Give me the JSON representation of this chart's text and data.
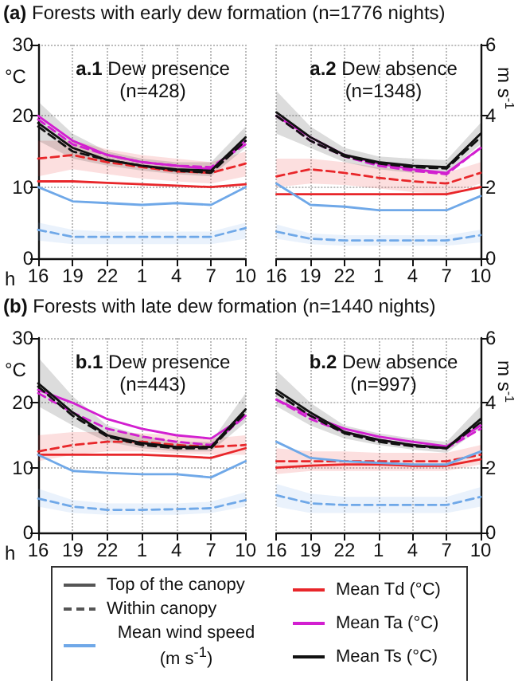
{
  "chart_data": [
    {
      "type": "line",
      "title": "a.1 Dew presence",
      "subtitle": "(n=428)",
      "annotations": [
        "(a) Forests with early dew formation (n=1776 nights)"
      ],
      "xlabel": "h",
      "ylabel": "°C",
      "categories": [
        "16",
        "19",
        "22",
        "1",
        "4",
        "7",
        "10"
      ],
      "ylim": [
        0,
        30
      ],
      "yticks": [
        0,
        10,
        20,
        30
      ],
      "y2lim": [
        0,
        6
      ],
      "grid": true,
      "tick_labels": "xy",
      "series": [
        {
          "color": "#e8262a",
          "line_style": "solid",
          "values": [
            10.8,
            10.8,
            10.6,
            10.4,
            10.2,
            10,
            10.4
          ]
        },
        {
          "color": "#e8262a",
          "line_style": "dashed",
          "values": [
            14,
            14.5,
            13.5,
            12.8,
            12.2,
            12,
            13.3
          ],
          "lower": [
            11.5,
            12.5,
            11.8,
            11.2,
            10.8,
            10.5,
            11.5
          ],
          "upper": [
            16.5,
            16.5,
            15.3,
            14.5,
            14,
            13.5,
            15
          ]
        },
        {
          "color": "#d21fd0",
          "line_style": "solid",
          "values": [
            20,
            16.5,
            14.5,
            13.5,
            13,
            12.5,
            16.5
          ]
        },
        {
          "color": "#d21fd0",
          "line_style": "dashed",
          "values": [
            19.5,
            16,
            14.5,
            13.5,
            13,
            12.8,
            16
          ]
        },
        {
          "color": "#111111",
          "line_style": "solid",
          "values": [
            19,
            15.5,
            13.8,
            13,
            12.5,
            12.3,
            17
          ],
          "lower": [
            16.5,
            14,
            13,
            12.3,
            11.8,
            11.5,
            15.5
          ],
          "upper": [
            22,
            17.5,
            15,
            14,
            13.5,
            13.5,
            18.5
          ]
        },
        {
          "color": "#111111",
          "line_style": "dashed",
          "values": [
            18.5,
            15,
            13.8,
            13,
            12.3,
            12,
            16.5
          ]
        },
        {
          "color": "#6fa8e8",
          "line_style": "solid",
          "axis": "y2",
          "values": [
            2,
            1.6,
            1.55,
            1.5,
            1.55,
            1.5,
            2
          ]
        },
        {
          "color": "#6fa8e8",
          "line_style": "dashed",
          "axis": "y2",
          "values": [
            0.8,
            0.6,
            0.6,
            0.6,
            0.6,
            0.6,
            0.85
          ],
          "lower": [
            0.5,
            0.4,
            0.4,
            0.4,
            0.4,
            0.4,
            0.55
          ],
          "upper": [
            1,
            0.8,
            0.75,
            0.75,
            0.75,
            0.75,
            1
          ]
        }
      ]
    },
    {
      "type": "line",
      "title": "a.2 Dew absence",
      "subtitle": "(n=1348)",
      "y2label": "m s$^{-1}$",
      "categories": [
        "16",
        "19",
        "22",
        "1",
        "4",
        "7",
        "10"
      ],
      "ylim": [
        0,
        30
      ],
      "y2lim": [
        0,
        6
      ],
      "y2ticks": [
        0,
        2,
        4,
        6
      ],
      "grid": true,
      "tick_labels": "xy2",
      "series": [
        {
          "color": "#e8262a",
          "line_style": "solid",
          "values": [
            9,
            9,
            9,
            9,
            9,
            9,
            10
          ]
        },
        {
          "color": "#e8262a",
          "line_style": "dashed",
          "values": [
            11.5,
            12.5,
            12,
            11.3,
            10.8,
            10.5,
            12
          ],
          "lower": [
            10,
            10.5,
            10.3,
            9.8,
            9.3,
            9,
            10.5
          ],
          "upper": [
            14,
            14,
            13.5,
            12.8,
            12.3,
            12,
            13.5
          ]
        },
        {
          "color": "#d21fd0",
          "line_style": "solid",
          "values": [
            20,
            17,
            14.5,
            13.3,
            12.5,
            12,
            15.5
          ]
        },
        {
          "color": "#d21fd0",
          "line_style": "dashed",
          "values": [
            20,
            16.5,
            14.3,
            13,
            12.3,
            11.8,
            15.5
          ]
        },
        {
          "color": "#111111",
          "line_style": "solid",
          "values": [
            20.5,
            17,
            14.5,
            13.5,
            13,
            12.8,
            17.5
          ],
          "lower": [
            17.5,
            15.5,
            13.5,
            12.5,
            12,
            12,
            16
          ],
          "upper": [
            23.5,
            18.5,
            15.5,
            14.3,
            14,
            13.8,
            19
          ]
        },
        {
          "color": "#111111",
          "line_style": "dashed",
          "values": [
            20,
            16.5,
            14.3,
            13.3,
            12.8,
            12.6,
            17
          ]
        },
        {
          "color": "#6fa8e8",
          "line_style": "solid",
          "axis": "y2",
          "values": [
            2.1,
            1.5,
            1.45,
            1.35,
            1.35,
            1.35,
            1.75
          ]
        },
        {
          "color": "#6fa8e8",
          "line_style": "dashed",
          "axis": "y2",
          "values": [
            0.75,
            0.55,
            0.5,
            0.5,
            0.5,
            0.5,
            0.65
          ],
          "lower": [
            0.55,
            0.4,
            0.35,
            0.35,
            0.35,
            0.35,
            0.45
          ],
          "upper": [
            0.95,
            0.7,
            0.65,
            0.65,
            0.65,
            0.65,
            0.8
          ]
        }
      ]
    },
    {
      "type": "line",
      "title": "b.1 Dew presence",
      "subtitle": "(n=443)",
      "annotations": [
        "(b) Forests with late dew formation (n=1440 nights)"
      ],
      "xlabel": "h",
      "ylabel": "°C",
      "categories": [
        "16",
        "19",
        "22",
        "1",
        "4",
        "7",
        "10"
      ],
      "ylim": [
        0,
        30
      ],
      "yticks": [
        0,
        10,
        20,
        30
      ],
      "y2lim": [
        0,
        6
      ],
      "grid": true,
      "tick_labels": "xy",
      "series": [
        {
          "color": "#e8262a",
          "line_style": "solid",
          "values": [
            12,
            12,
            12,
            12,
            11.8,
            11.5,
            13
          ]
        },
        {
          "color": "#e8262a",
          "line_style": "dashed",
          "values": [
            12.5,
            13.5,
            14,
            14,
            13.5,
            13.2,
            13.5
          ],
          "lower": [
            11,
            12,
            12.5,
            12.5,
            12.2,
            12,
            12
          ],
          "upper": [
            15,
            15.5,
            15.5,
            15.3,
            15,
            14.5,
            15
          ]
        },
        {
          "color": "#d21fd0",
          "line_style": "solid",
          "values": [
            22,
            20,
            17.5,
            16,
            15,
            14.5,
            18
          ]
        },
        {
          "color": "#d21fd0",
          "line_style": "dashed",
          "values": [
            21.5,
            18.5,
            16,
            14.8,
            14,
            13.5,
            18
          ]
        },
        {
          "color": "#111111",
          "line_style": "solid",
          "values": [
            23,
            18.5,
            15,
            13.8,
            13.2,
            13.2,
            19
          ],
          "lower": [
            19.5,
            16.5,
            14,
            13,
            12.5,
            12.5,
            17
          ],
          "upper": [
            27,
            21,
            16.5,
            15,
            14,
            14,
            21.5
          ]
        },
        {
          "color": "#111111",
          "line_style": "dashed",
          "values": [
            22.5,
            18,
            14.8,
            13.5,
            13,
            13,
            18.5
          ]
        },
        {
          "color": "#6fa8e8",
          "line_style": "solid",
          "axis": "y2",
          "values": [
            2.4,
            1.9,
            1.84,
            1.8,
            1.8,
            1.7,
            2.2
          ]
        },
        {
          "color": "#6fa8e8",
          "line_style": "dashed",
          "axis": "y2",
          "values": [
            1.05,
            0.8,
            0.7,
            0.7,
            0.72,
            0.75,
            1
          ],
          "lower": [
            0.8,
            0.6,
            0.55,
            0.55,
            0.55,
            0.6,
            0.8
          ],
          "upper": [
            1.35,
            1,
            0.9,
            0.9,
            0.9,
            0.95,
            1.25
          ]
        }
      ]
    },
    {
      "type": "line",
      "title": "b.2 Dew absence",
      "subtitle": "(n=997)",
      "y2label": "m s$^{-1}$",
      "annotations": [
        "Top of the canopy",
        "Within canopy",
        "Mean wind speed (m s$^{-1}$)",
        "Mean Td (°C)",
        "Mean Ta (°C)",
        "Mean Ts (°C)"
      ],
      "categories": [
        "16",
        "19",
        "22",
        "1",
        "4",
        "7",
        "10"
      ],
      "ylim": [
        0,
        30
      ],
      "y2lim": [
        0,
        6
      ],
      "y2ticks": [
        0,
        2,
        4,
        6
      ],
      "grid": true,
      "tick_labels": "xy2",
      "series": [
        {
          "color": "#e8262a",
          "line_style": "solid",
          "values": [
            10,
            10.3,
            10.5,
            10.5,
            10.3,
            10.3,
            11.3
          ]
        },
        {
          "color": "#e8262a",
          "line_style": "dashed",
          "values": [
            11,
            11,
            11,
            11,
            11,
            11,
            12
          ],
          "lower": [
            9,
            9.5,
            9.5,
            9.5,
            9.5,
            9.5,
            10.5
          ],
          "upper": [
            13,
            12.5,
            12.5,
            12.3,
            12.3,
            12.3,
            13.5
          ]
        },
        {
          "color": "#d21fd0",
          "line_style": "solid",
          "values": [
            20.5,
            18,
            16,
            14.8,
            14,
            13.3,
            16.5
          ]
        },
        {
          "color": "#d21fd0",
          "line_style": "dashed",
          "values": [
            20.5,
            17.5,
            15.5,
            14.3,
            13.5,
            13,
            16
          ]
        },
        {
          "color": "#111111",
          "line_style": "solid",
          "values": [
            22,
            18.5,
            15.5,
            14.3,
            13.5,
            13,
            17.5
          ],
          "lower": [
            19.5,
            16.5,
            14.5,
            13.5,
            12.8,
            12.3,
            16
          ],
          "upper": [
            25,
            20,
            16.5,
            15.3,
            14.5,
            14,
            19.5
          ]
        },
        {
          "color": "#111111",
          "line_style": "dashed",
          "values": [
            21.5,
            18,
            15.3,
            14,
            13.3,
            13,
            17
          ]
        },
        {
          "color": "#6fa8e8",
          "line_style": "solid",
          "axis": "y2",
          "values": [
            2.8,
            2.3,
            2.2,
            2.15,
            2.1,
            2.1,
            2.5
          ]
        },
        {
          "color": "#6fa8e8",
          "line_style": "dashed",
          "axis": "y2",
          "values": [
            1.15,
            0.9,
            0.85,
            0.85,
            0.85,
            0.85,
            1.1
          ],
          "lower": [
            0.8,
            0.6,
            0.6,
            0.6,
            0.6,
            0.6,
            0.8
          ],
          "upper": [
            1.5,
            1.2,
            1.1,
            1.1,
            1.1,
            1.1,
            1.4
          ]
        }
      ]
    }
  ]
}
